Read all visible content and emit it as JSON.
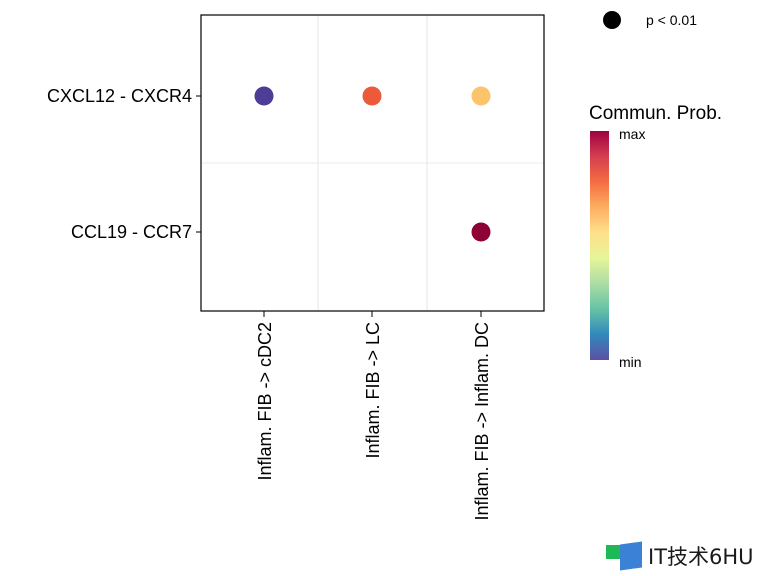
{
  "chart_data": {
    "type": "scatter",
    "subtype": "bubble-dot-plot",
    "title": "",
    "xlabel": "",
    "ylabel": "",
    "x_categories": [
      "Inflam. FIB -> cDC2",
      "Inflam. FIB -> LC",
      "Inflam. FIB -> Inflam. DC"
    ],
    "y_categories": [
      "CXCL12 - CXCR4",
      "CCL19 - CCR7"
    ],
    "grid": true,
    "points": [
      {
        "x": "Inflam. FIB -> cDC2",
        "y": "CXCL12 - CXCR4",
        "prob_scaled": 0.0,
        "color": "#4e3d96",
        "pval": "p < 0.01"
      },
      {
        "x": "Inflam. FIB -> LC",
        "y": "CXCL12 - CXCR4",
        "prob_scaled": 0.75,
        "color": "#ec5a3b",
        "pval": "p < 0.01"
      },
      {
        "x": "Inflam. FIB -> Inflam. DC",
        "y": "CXCL12 - CXCR4",
        "prob_scaled": 0.58,
        "color": "#fbc36a",
        "pval": "p < 0.01"
      },
      {
        "x": "Inflam. FIB -> Inflam. DC",
        "y": "CCL19 - CCR7",
        "prob_scaled": 1.0,
        "color": "#8e0137",
        "pval": "p < 0.01"
      }
    ],
    "size_legend": {
      "label": "p < 0.01",
      "color": "#000000",
      "placement": "top-right"
    },
    "color_legend": {
      "title": "Commun. Prob.",
      "max_label": "max",
      "min_label": "min",
      "placement": "right",
      "colormap": [
        "#9e0142",
        "#d53e4f",
        "#f46d43",
        "#fdae61",
        "#fee08b",
        "#e6f598",
        "#abdda4",
        "#66c2a5",
        "#3288bd",
        "#5e4fa2"
      ]
    }
  },
  "watermark": {
    "text": "IT技术6HU"
  }
}
